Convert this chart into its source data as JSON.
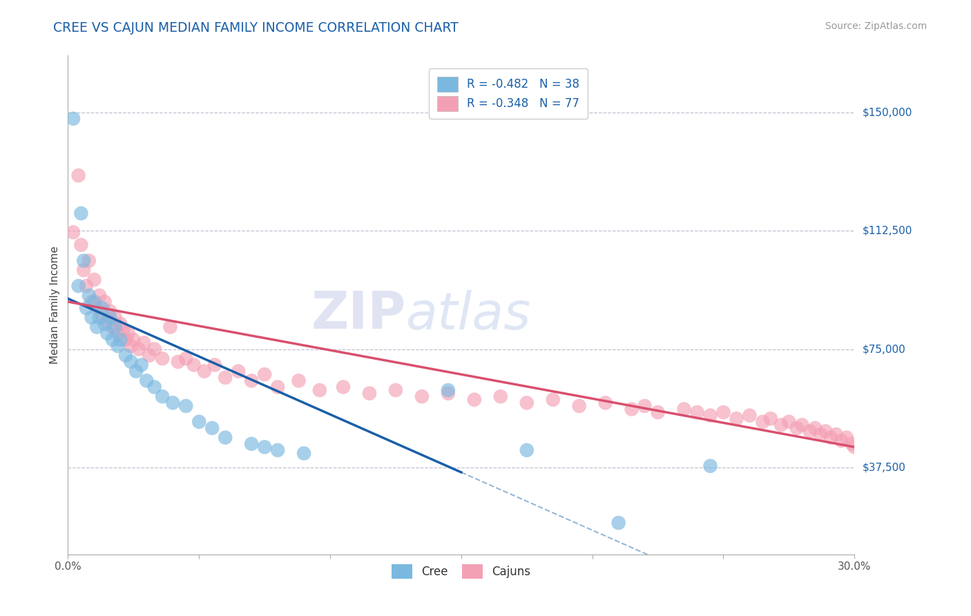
{
  "title": "CREE VS CAJUN MEDIAN FAMILY INCOME CORRELATION CHART",
  "source_text": "Source: ZipAtlas.com",
  "ylabel": "Median Family Income",
  "xlim": [
    0.0,
    0.3
  ],
  "ylim": [
    10000,
    168000
  ],
  "xticks": [
    0.0,
    0.05,
    0.1,
    0.15,
    0.2,
    0.25,
    0.3
  ],
  "xtick_labels": [
    "0.0%",
    "",
    "",
    "",
    "",
    "",
    "30.0%"
  ],
  "ytick_positions": [
    37500,
    75000,
    112500,
    150000
  ],
  "ytick_labels": [
    "$37,500",
    "$75,000",
    "$112,500",
    "$150,000"
  ],
  "watermark_part1": "ZIP",
  "watermark_part2": "atlas",
  "legend_labels": [
    "Cree",
    "Cajuns"
  ],
  "cree_R": -0.482,
  "cree_N": 38,
  "cajun_R": -0.348,
  "cajun_N": 77,
  "cree_color": "#7ab8e0",
  "cajun_color": "#f4a0b4",
  "cree_line_color": "#1a5fa8",
  "cajun_line_color": "#d94f6e",
  "background_color": "#ffffff",
  "grid_color": "#c0c0d0",
  "title_color": "#1a5fa8",
  "source_color": "#999999",
  "ytick_color": "#1a5fa8",
  "cree_points_x": [
    0.002,
    0.004,
    0.005,
    0.006,
    0.007,
    0.008,
    0.009,
    0.01,
    0.011,
    0.012,
    0.013,
    0.014,
    0.015,
    0.016,
    0.017,
    0.018,
    0.019,
    0.02,
    0.022,
    0.024,
    0.026,
    0.028,
    0.03,
    0.033,
    0.036,
    0.04,
    0.045,
    0.05,
    0.055,
    0.06,
    0.07,
    0.075,
    0.08,
    0.09,
    0.145,
    0.175,
    0.21,
    0.245
  ],
  "cree_points_y": [
    148000,
    95000,
    118000,
    103000,
    88000,
    92000,
    85000,
    90000,
    82000,
    85000,
    88000,
    83000,
    80000,
    85000,
    78000,
    82000,
    76000,
    78000,
    73000,
    71000,
    68000,
    70000,
    65000,
    63000,
    60000,
    58000,
    57000,
    52000,
    50000,
    47000,
    45000,
    44000,
    43000,
    42000,
    62000,
    43000,
    20000,
    38000
  ],
  "cajun_points_x": [
    0.002,
    0.004,
    0.005,
    0.006,
    0.007,
    0.008,
    0.009,
    0.01,
    0.011,
    0.012,
    0.013,
    0.014,
    0.015,
    0.016,
    0.017,
    0.018,
    0.019,
    0.02,
    0.021,
    0.022,
    0.023,
    0.024,
    0.025,
    0.027,
    0.029,
    0.031,
    0.033,
    0.036,
    0.039,
    0.042,
    0.045,
    0.048,
    0.052,
    0.056,
    0.06,
    0.065,
    0.07,
    0.075,
    0.08,
    0.088,
    0.096,
    0.105,
    0.115,
    0.125,
    0.135,
    0.145,
    0.155,
    0.165,
    0.175,
    0.185,
    0.195,
    0.205,
    0.215,
    0.22,
    0.225,
    0.235,
    0.24,
    0.245,
    0.25,
    0.255,
    0.26,
    0.265,
    0.268,
    0.272,
    0.275,
    0.278,
    0.28,
    0.283,
    0.285,
    0.287,
    0.289,
    0.291,
    0.293,
    0.295,
    0.297,
    0.299,
    0.3
  ],
  "cajun_points_y": [
    112000,
    130000,
    108000,
    100000,
    95000,
    103000,
    90000,
    97000,
    88000,
    92000,
    86000,
    90000,
    84000,
    87000,
    82000,
    85000,
    80000,
    83000,
    81000,
    78000,
    80000,
    76000,
    78000,
    75000,
    77000,
    73000,
    75000,
    72000,
    82000,
    71000,
    72000,
    70000,
    68000,
    70000,
    66000,
    68000,
    65000,
    67000,
    63000,
    65000,
    62000,
    63000,
    61000,
    62000,
    60000,
    61000,
    59000,
    60000,
    58000,
    59000,
    57000,
    58000,
    56000,
    57000,
    55000,
    56000,
    55000,
    54000,
    55000,
    53000,
    54000,
    52000,
    53000,
    51000,
    52000,
    50000,
    51000,
    49000,
    50000,
    48000,
    49000,
    47000,
    48000,
    46000,
    47000,
    45000,
    44000
  ],
  "cree_line_x0": 0.0,
  "cree_line_y0": 91000,
  "cree_line_x1": 0.15,
  "cree_line_y1": 36000,
  "cajun_line_x0": 0.0,
  "cajun_line_y0": 90000,
  "cajun_line_x1": 0.3,
  "cajun_line_y1": 44000
}
